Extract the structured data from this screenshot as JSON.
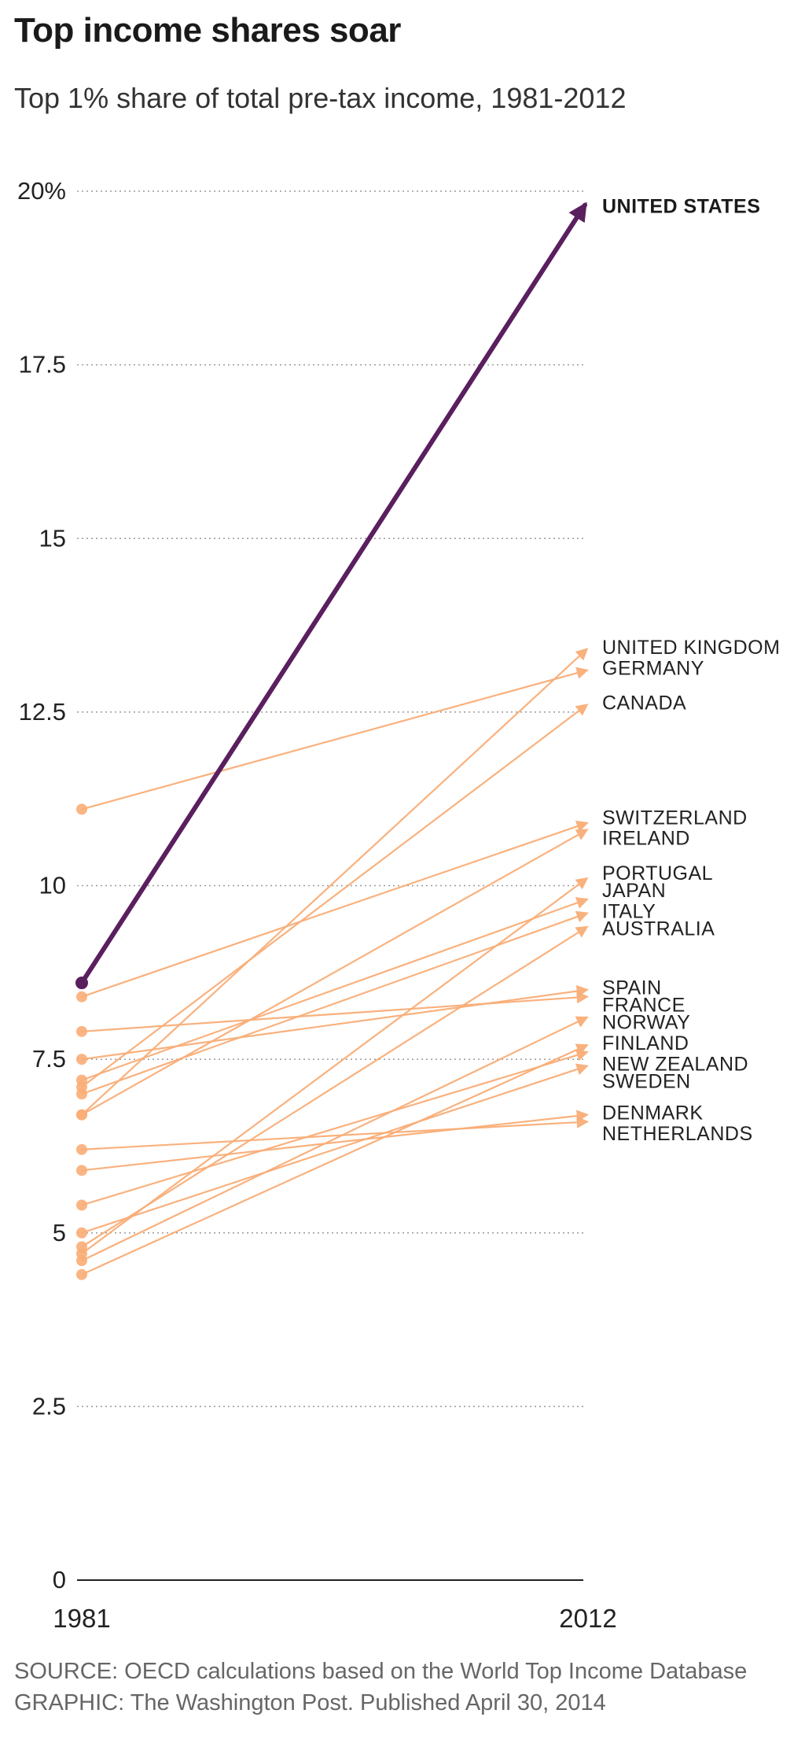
{
  "title": "Top income shares soar",
  "subtitle": "Top 1% share of total pre-tax income, 1981-2012",
  "footer": {
    "source": "SOURCE: OECD calculations based on the World Top Income Database",
    "graphic": "GRAPHIC: The Washington Post. Published April 30, 2014"
  },
  "colors": {
    "highlight": "#5a1f5e",
    "others": "#f9ad77",
    "gridline": "#9a9a9a",
    "axis": "#222222"
  },
  "chart_data": {
    "type": "slope",
    "title": "Top income shares soar",
    "subtitle": "Top 1% share of total pre-tax income, 1981-2012",
    "xlabel": "",
    "ylabel": "",
    "x_categories": [
      "1981",
      "2012"
    ],
    "ylim": [
      0,
      20
    ],
    "yticks": [
      {
        "value": 0,
        "label": "0"
      },
      {
        "value": 2.5,
        "label": "2.5"
      },
      {
        "value": 5,
        "label": "5"
      },
      {
        "value": 7.5,
        "label": "7.5"
      },
      {
        "value": 10,
        "label": "10"
      },
      {
        "value": 12.5,
        "label": "12.5"
      },
      {
        "value": 15,
        "label": "15"
      },
      {
        "value": 17.5,
        "label": "17.5"
      },
      {
        "value": 20,
        "label": "20%"
      }
    ],
    "grid": true,
    "series": [
      {
        "name": "UNITED STATES",
        "values": [
          8.6,
          19.8
        ],
        "highlight": true,
        "label_value": 19.8
      },
      {
        "name": "UNITED KINGDOM",
        "values": [
          6.7,
          13.4
        ],
        "label_value": 13.45
      },
      {
        "name": "GERMANY",
        "values": [
          11.1,
          13.1
        ],
        "label_value": 13.15
      },
      {
        "name": "CANADA",
        "values": [
          7.1,
          12.6
        ],
        "label_value": 12.65
      },
      {
        "name": "SWITZERLAND",
        "values": [
          8.4,
          10.9
        ],
        "label_value": 11.0
      },
      {
        "name": "IRELAND",
        "values": [
          6.7,
          10.8
        ],
        "label_value": 10.7
      },
      {
        "name": "PORTUGAL",
        "values": [
          4.7,
          10.1
        ],
        "label_value": 10.2
      },
      {
        "name": "JAPAN",
        "values": [
          7.2,
          9.8
        ],
        "label_value": 9.95
      },
      {
        "name": "ITALY",
        "values": [
          7.0,
          9.6
        ],
        "label_value": 9.65
      },
      {
        "name": "AUSTRALIA",
        "values": [
          4.8,
          9.4
        ],
        "label_value": 9.4
      },
      {
        "name": "SPAIN",
        "values": [
          7.5,
          8.5
        ],
        "label_value": 8.55
      },
      {
        "name": "FRANCE",
        "values": [
          7.9,
          8.4
        ],
        "label_value": 8.3
      },
      {
        "name": "NORWAY",
        "values": [
          4.6,
          8.1
        ],
        "label_value": 8.05
      },
      {
        "name": "FINLAND",
        "values": [
          4.4,
          7.7
        ],
        "label_value": 7.75
      },
      {
        "name": "NEW ZEALAND",
        "values": [
          5.4,
          7.6
        ],
        "label_value": 7.45
      },
      {
        "name": "SWEDEN",
        "values": [
          5.0,
          7.4
        ],
        "label_value": 7.2
      },
      {
        "name": "DENMARK",
        "values": [
          5.9,
          6.7
        ],
        "label_value": 6.75
      },
      {
        "name": "NETHERLANDS",
        "values": [
          6.2,
          6.6
        ],
        "label_value": 6.45
      }
    ]
  }
}
